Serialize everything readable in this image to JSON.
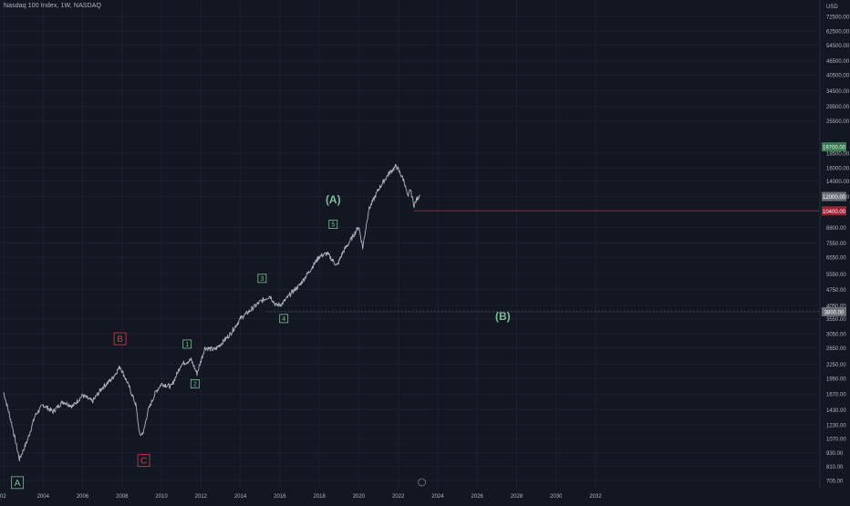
{
  "header": {
    "title": "Nasdaq 100 Index, 1W, NASDAQ"
  },
  "colors": {
    "background": "#131722",
    "grid": "#1c2030",
    "candles": "#b2b5be",
    "wave_label_green": "#7dbf9a",
    "wave_label_red": "#d0404f",
    "support_line": "#9c2235",
    "dotted_line": "#5d606b"
  },
  "chart_data": {
    "type": "candlestick-line",
    "scale": "log",
    "currency_label": "USD",
    "y_ticks": [
      "72500.00",
      "62500.00",
      "54500.00",
      "46500.00",
      "40500.00",
      "34500.00",
      "29500.00",
      "25500.00",
      "18500.00",
      "16000.00",
      "14000.00",
      "12000.00",
      "8800.00",
      "7550.00",
      "6550.00",
      "5550.00",
      "4750.00",
      "4050.00",
      "3550.00",
      "3050.00",
      "2650.00",
      "2250.00",
      "1950.00",
      "1670.00",
      "1430.00",
      "1230.00",
      "1070.00",
      "930.00",
      "810.00",
      "705.00"
    ],
    "y_tick_values": [
      72500,
      62500,
      54500,
      46500,
      40500,
      34500,
      29500,
      25500,
      18500,
      16000,
      14000,
      12000,
      8800,
      7550,
      6550,
      5550,
      4750,
      4050,
      3550,
      3050,
      2650,
      2250,
      1950,
      1670,
      1430,
      1230,
      1070,
      930,
      810,
      705
    ],
    "x_ticks": [
      "02",
      "2004",
      "2006",
      "2008",
      "2010",
      "2012",
      "2014",
      "2016",
      "2018",
      "2020",
      "2022",
      "2024",
      "2026",
      "2028",
      "2030",
      "2032"
    ],
    "x_tick_years": [
      2002,
      2004,
      2006,
      2008,
      2010,
      2012,
      2014,
      2016,
      2018,
      2020,
      2022,
      2024,
      2026,
      2028,
      2030,
      2032
    ],
    "price_path": [
      [
        2002.0,
        1700
      ],
      [
        2002.4,
        1250
      ],
      [
        2002.8,
        870
      ],
      [
        2003.2,
        1050
      ],
      [
        2003.6,
        1350
      ],
      [
        2004.0,
        1500
      ],
      [
        2004.5,
        1400
      ],
      [
        2005.0,
        1550
      ],
      [
        2005.5,
        1480
      ],
      [
        2006.0,
        1650
      ],
      [
        2006.5,
        1550
      ],
      [
        2007.0,
        1780
      ],
      [
        2007.5,
        1950
      ],
      [
        2007.9,
        2200
      ],
      [
        2008.3,
        1850
      ],
      [
        2008.7,
        1500
      ],
      [
        2008.9,
        1100
      ],
      [
        2009.1,
        1150
      ],
      [
        2009.3,
        1400
      ],
      [
        2009.7,
        1700
      ],
      [
        2010.0,
        1850
      ],
      [
        2010.5,
        1800
      ],
      [
        2011.0,
        2250
      ],
      [
        2011.5,
        2350
      ],
      [
        2011.8,
        2050
      ],
      [
        2012.2,
        2650
      ],
      [
        2012.7,
        2600
      ],
      [
        2013.0,
        2750
      ],
      [
        2013.5,
        3050
      ],
      [
        2014.0,
        3550
      ],
      [
        2014.5,
        3850
      ],
      [
        2015.0,
        4200
      ],
      [
        2015.5,
        4450
      ],
      [
        2015.8,
        4050
      ],
      [
        2016.1,
        4100
      ],
      [
        2016.6,
        4600
      ],
      [
        2017.0,
        4950
      ],
      [
        2017.5,
        5700
      ],
      [
        2018.0,
        6600
      ],
      [
        2018.4,
        6800
      ],
      [
        2018.9,
        6000
      ],
      [
        2019.2,
        6900
      ],
      [
        2019.6,
        7800
      ],
      [
        2020.0,
        8900
      ],
      [
        2020.2,
        7200
      ],
      [
        2020.5,
        10500
      ],
      [
        2021.0,
        12900
      ],
      [
        2021.5,
        15000
      ],
      [
        2021.9,
        16300
      ],
      [
        2022.3,
        14000
      ],
      [
        2022.5,
        11800
      ],
      [
        2022.6,
        13000
      ],
      [
        2022.8,
        11000
      ],
      [
        2022.95,
        11700
      ],
      [
        2023.1,
        12200
      ]
    ],
    "last_price": 12000,
    "support_level": 10400,
    "upper_label_level": 19700,
    "lower_label_level": 3800,
    "wave_labels": [
      {
        "text": "A",
        "year": 2002.7,
        "price": 690,
        "boxed": true,
        "color": "green"
      },
      {
        "text": "B",
        "year": 2007.9,
        "price": 2900,
        "boxed": true,
        "color": "red"
      },
      {
        "text": "C",
        "year": 2009.1,
        "price": 860,
        "boxed": true,
        "color": "red"
      },
      {
        "text": "1",
        "year": 2011.3,
        "price": 2750,
        "boxed": true,
        "color": "green"
      },
      {
        "text": "2",
        "year": 2011.7,
        "price": 1850,
        "boxed": true,
        "color": "green"
      },
      {
        "text": "3",
        "year": 2015.1,
        "price": 5300,
        "boxed": true,
        "color": "green"
      },
      {
        "text": "4",
        "year": 2016.2,
        "price": 3550,
        "boxed": true,
        "color": "green"
      },
      {
        "text": "5",
        "year": 2018.7,
        "price": 9100,
        "boxed": true,
        "color": "green"
      },
      {
        "text": "(A)",
        "year": 2018.7,
        "price": 11200,
        "boxed": false,
        "color": "green"
      },
      {
        "text": "(B)",
        "year": 2027.3,
        "price": 3500,
        "boxed": false,
        "color": "green"
      }
    ]
  }
}
